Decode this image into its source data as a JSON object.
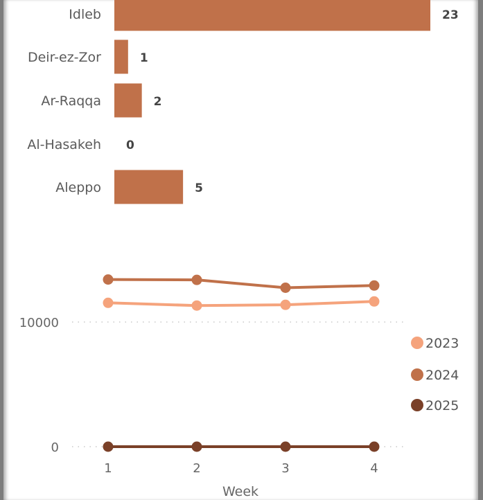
{
  "chart_data": [
    {
      "type": "bar",
      "orientation": "horizontal",
      "categories": [
        "Idleb",
        "Deir-ez-Zor",
        "Ar-Raqqa",
        "Al-Hasakeh",
        "Aleppo"
      ],
      "values": [
        23,
        1,
        2,
        0,
        5
      ],
      "data_labels": [
        "23",
        "1",
        "2",
        "0",
        "5"
      ],
      "color": "#c0714a",
      "xlim": [
        0,
        23
      ]
    },
    {
      "type": "line",
      "x": [
        1,
        2,
        3,
        4
      ],
      "x_tick_labels": [
        "1",
        "2",
        "3",
        "4"
      ],
      "xlabel": "Week",
      "y_tick_labels": [
        "0",
        "10000"
      ],
      "ylim": [
        0,
        10000
      ],
      "grid": "dotted horizontal",
      "legend_placement": "right",
      "series": [
        {
          "name": "2023",
          "color": "#f5a37c",
          "values": [
            11540,
            11320,
            11380,
            11650
          ]
        },
        {
          "name": "2024",
          "color": "#c0714a",
          "values": [
            13410,
            13380,
            12750,
            12930
          ]
        },
        {
          "name": "2025",
          "color": "#7a4028",
          "values": [
            0,
            0,
            0,
            0
          ]
        }
      ]
    }
  ]
}
